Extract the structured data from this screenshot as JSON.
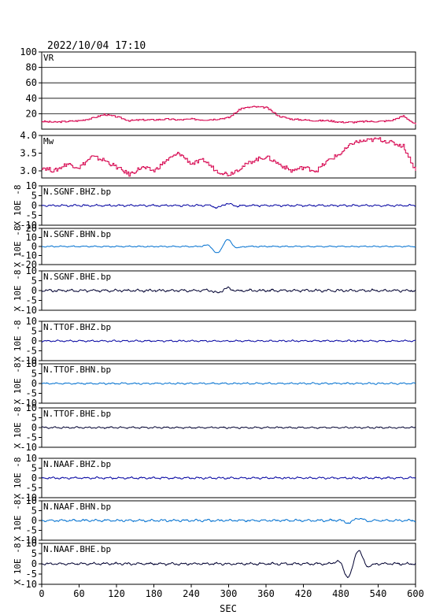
{
  "header": {
    "datetime": "2022/10/04  17:10"
  },
  "xaxis": {
    "label": "SEC",
    "min": 0,
    "max": 600,
    "ticks": [
      0,
      60,
      120,
      180,
      240,
      300,
      360,
      420,
      480,
      540,
      600
    ]
  },
  "colors": {
    "vr": "#d6004c",
    "mw": "#d6004c",
    "bhz": "#0000a0",
    "bhn": "#0070d0",
    "bhe": "#000030",
    "grid": "#000000"
  },
  "chart_data": [
    {
      "type": "line",
      "id": "vr",
      "title": "VR",
      "ylabel": "",
      "ylim": [
        0,
        100
      ],
      "yticks": [
        20,
        40,
        60,
        80,
        100
      ],
      "grid": true,
      "x": [
        0,
        20,
        40,
        60,
        80,
        100,
        120,
        140,
        160,
        180,
        200,
        220,
        240,
        260,
        280,
        300,
        320,
        340,
        360,
        380,
        400,
        420,
        440,
        460,
        480,
        500,
        520,
        540,
        560,
        580,
        600
      ],
      "values": [
        10,
        9,
        10,
        11,
        14,
        19,
        16,
        11,
        12,
        12,
        13,
        12,
        13,
        12,
        13,
        15,
        27,
        29,
        28,
        17,
        13,
        12,
        11,
        11,
        9,
        9,
        10,
        10,
        11,
        17,
        6
      ]
    },
    {
      "type": "line",
      "id": "mw",
      "title": "Mw",
      "ylabel": "",
      "ylim": [
        2.8,
        4.0
      ],
      "yticks": [
        3.0,
        3.5,
        4.0
      ],
      "ytick_labels": [
        "3.0",
        "3.5",
        "4.0"
      ],
      "grid": false,
      "x": [
        0,
        20,
        40,
        60,
        80,
        100,
        120,
        140,
        160,
        180,
        200,
        220,
        240,
        260,
        280,
        300,
        320,
        340,
        360,
        380,
        400,
        420,
        440,
        460,
        480,
        500,
        520,
        540,
        560,
        580,
        600
      ],
      "values": [
        3.1,
        3.0,
        3.2,
        3.1,
        3.4,
        3.3,
        3.1,
        2.9,
        3.1,
        3.0,
        3.3,
        3.5,
        3.2,
        3.3,
        3.0,
        2.9,
        3.1,
        3.3,
        3.4,
        3.2,
        3.0,
        3.1,
        3.0,
        3.3,
        3.5,
        3.8,
        3.85,
        3.9,
        3.8,
        3.7,
        3.0
      ]
    },
    {
      "type": "line",
      "id": "sgnf-bhz",
      "title": "N.SGNF.BHZ.bp",
      "ylabel": "X 10E -8",
      "ylim": [
        -10,
        10
      ],
      "yticks": [
        -10,
        -5,
        0,
        5,
        10
      ],
      "amp": 0.6,
      "events": [
        {
          "x": 290,
          "amp": 1.2
        }
      ]
    },
    {
      "type": "line",
      "id": "sgnf-bhn",
      "title": "N.SGNF.BHN.bp",
      "ylabel": "X 10E -8",
      "ylim": [
        -20,
        20
      ],
      "yticks": [
        -20,
        -10,
        0,
        10,
        20
      ],
      "amp": 0.8,
      "events": [
        {
          "x": 290,
          "amp": 9
        }
      ]
    },
    {
      "type": "line",
      "id": "sgnf-bhe",
      "title": "N.SGNF.BHE.bp",
      "ylabel": "X 10E -8",
      "ylim": [
        -10,
        10
      ],
      "yticks": [
        -10,
        -5,
        0,
        5,
        10
      ],
      "amp": 0.8,
      "events": [
        {
          "x": 290,
          "amp": 1.5
        }
      ]
    },
    {
      "type": "line",
      "id": "ttof-bhz",
      "title": "N.TTOF.BHZ.bp",
      "ylabel": "X 10E -8",
      "ylim": [
        -10,
        10
      ],
      "yticks": [
        -10,
        -5,
        0,
        5,
        10
      ],
      "amp": 0.5,
      "events": []
    },
    {
      "type": "line",
      "id": "ttof-bhn",
      "title": "N.TTOF.BHN.bp",
      "ylabel": "X 10E -8",
      "ylim": [
        -10,
        10
      ],
      "yticks": [
        -10,
        -5,
        0,
        5,
        10
      ],
      "amp": 0.5,
      "events": []
    },
    {
      "type": "line",
      "id": "ttof-bhe",
      "title": "N.TTOF.BHE.bp",
      "ylabel": "X 10E -8",
      "ylim": [
        -10,
        10
      ],
      "yticks": [
        -10,
        -5,
        0,
        5,
        10
      ],
      "amp": 0.5,
      "events": []
    },
    {
      "type": "line",
      "id": "naaf-bhz",
      "title": "N.NAAF.BHZ.bp",
      "ylabel": "X 10E -8",
      "ylim": [
        -10,
        10
      ],
      "yticks": [
        -10,
        -5,
        0,
        5,
        10
      ],
      "amp": 0.6,
      "events": []
    },
    {
      "type": "line",
      "id": "naaf-bhn",
      "title": "N.NAAF.BHN.bp",
      "ylabel": "X 10E -8",
      "ylim": [
        -10,
        10
      ],
      "yticks": [
        -10,
        -5,
        0,
        5,
        10
      ],
      "amp": 0.7,
      "events": [
        {
          "x": 500,
          "amp": 1.5
        }
      ]
    },
    {
      "type": "line",
      "id": "naaf-bhe",
      "title": "N.NAAF.BHE.bp",
      "ylabel": "X 10E -8",
      "ylim": [
        -10,
        10
      ],
      "yticks": [
        -10,
        -5,
        0,
        5,
        10
      ],
      "amp": 0.7,
      "events": [
        {
          "x": 500,
          "amp": 8
        }
      ]
    }
  ]
}
